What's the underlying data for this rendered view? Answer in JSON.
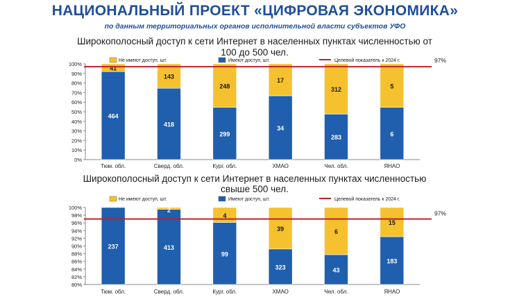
{
  "header": {
    "title": "НАЦИОНАЛЬНЫЙ ПРОЕКТ «ЦИФРОВАЯ ЭКОНОМИКА»",
    "subtitle": "по данным территориальных органов исполнительной власти субъектов УФО"
  },
  "colors": {
    "have_access": "#1f5fad",
    "no_access": "#f5c12e",
    "target_line": "#c0202a",
    "title": "#1f4e9c"
  },
  "chart_data": [
    {
      "type": "bar",
      "stacked": "percent",
      "title_lines": [
        "Широкополосный доступ к сети Интернет в населенных пунктах численностью от",
        "100 до 500 чел."
      ],
      "categories": [
        "Тюм. обл.",
        "Сверд. обл.",
        "Кург. обл.",
        "ХМАО",
        "Чел. обл.",
        "ЯНАО"
      ],
      "series": [
        {
          "name": "Имеют доступ, шт.",
          "values": [
            464,
            418,
            299,
            34,
            283,
            6
          ]
        },
        {
          "name": "Не имеют доступ, шт.",
          "values": [
            41,
            143,
            248,
            17,
            312,
            5
          ]
        }
      ],
      "target": {
        "name": "Целевой показатель к 2024 г.",
        "value": 97,
        "label": "97%"
      },
      "ylim": [
        0,
        100
      ],
      "yticks": [
        "0%",
        "10%",
        "20%",
        "30%",
        "40%",
        "50%",
        "60%",
        "70%",
        "80%",
        "90%",
        "100%"
      ],
      "grid": false,
      "legend": "top"
    },
    {
      "type": "bar",
      "stacked": "percent",
      "title_lines": [
        "Широкополосный доступ к сети Интернет в населенных пунктах численностью",
        "свыше 500 чел."
      ],
      "categories": [
        "Тюм. обл.",
        "Сверд. обл.",
        "Кург. обл.",
        "ХМАО",
        "Чел. обл.",
        "ЯНАО"
      ],
      "series": [
        {
          "name": "Имеют доступ, шт.",
          "values": [
            237,
            413,
            99,
            323,
            43,
            183
          ]
        },
        {
          "name": "Не имеют доступ, шт.",
          "values": [
            0,
            2,
            4,
            39,
            6,
            15
          ]
        }
      ],
      "target": {
        "name": "Целевой показатель к 2024 г.",
        "value": 97,
        "label": "97%"
      },
      "ylim": [
        80,
        100
      ],
      "yticks": [
        "80%",
        "82%",
        "84%",
        "86%",
        "88%",
        "90%",
        "92%",
        "94%",
        "96%",
        "98%",
        "100%"
      ],
      "grid": false,
      "legend": "top"
    }
  ]
}
